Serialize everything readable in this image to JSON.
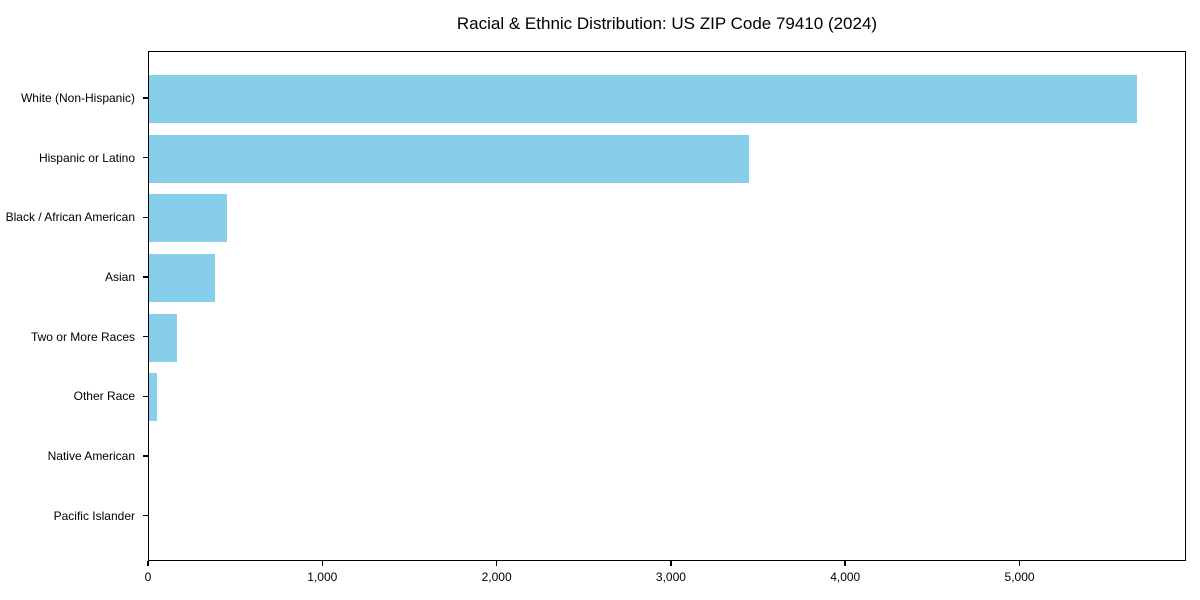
{
  "chart_data": {
    "type": "bar",
    "orientation": "horizontal",
    "title": "Racial & Ethnic Distribution: US ZIP Code 79410 (2024)",
    "categories": [
      "White (Non-Hispanic)",
      "Hispanic or Latino",
      "Black / African American",
      "Asian",
      "Two or More Races",
      "Other Race",
      "Native American",
      "Pacific Islander"
    ],
    "values": [
      5670,
      3440,
      445,
      380,
      160,
      45,
      0,
      0
    ],
    "xlabel": "",
    "ylabel": "",
    "xlim": [
      0,
      5955
    ],
    "xticks": [
      0,
      1000,
      2000,
      3000,
      4000,
      5000
    ],
    "xtick_labels": [
      "0",
      "1,000",
      "2,000",
      "3,000",
      "4,000",
      "5,000"
    ],
    "bar_color": "#87CEEB",
    "axis_color": "#000000",
    "grid": false,
    "legend": null
  }
}
